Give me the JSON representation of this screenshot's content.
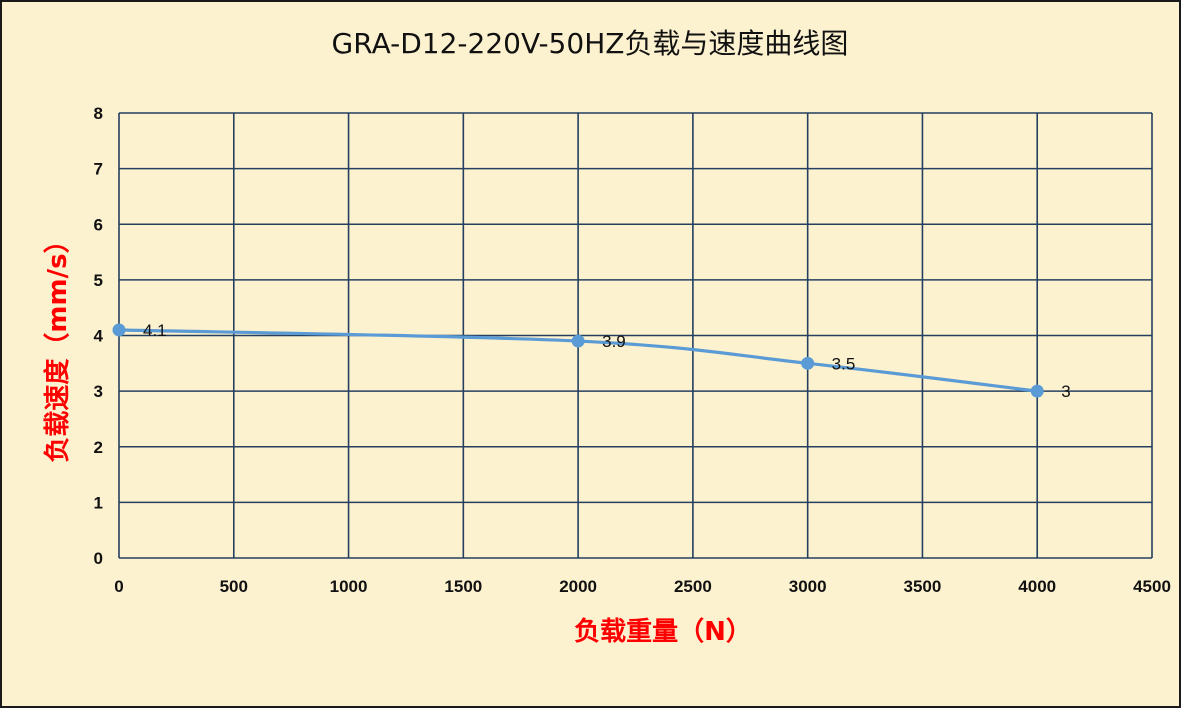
{
  "chart_data": {
    "type": "line",
    "title": "GRA-D12-220V-50HZ负载与速度曲线图",
    "xlabel": "负载重量（N）",
    "ylabel": "负载速度（mm/s）",
    "xlim": [
      0,
      4500
    ],
    "ylim": [
      0,
      8
    ],
    "x_ticks": [
      0,
      500,
      1000,
      1500,
      2000,
      2500,
      3000,
      3500,
      4000,
      4500
    ],
    "y_ticks": [
      0,
      1,
      2,
      3,
      4,
      5,
      6,
      7,
      8
    ],
    "grid": true,
    "legend": "none",
    "series": [
      {
        "x": [
          0,
          2000,
          3000,
          4000
        ],
        "values": [
          4.1,
          3.9,
          3.5,
          3
        ],
        "labels": [
          "4.1",
          "3.9",
          "3.5",
          "3"
        ],
        "smooth": true
      }
    ],
    "colors": {
      "background": "#fdf2d0",
      "grid": "#243f60",
      "line": "#5b9bd5",
      "axis_title": "#ff0000"
    }
  }
}
